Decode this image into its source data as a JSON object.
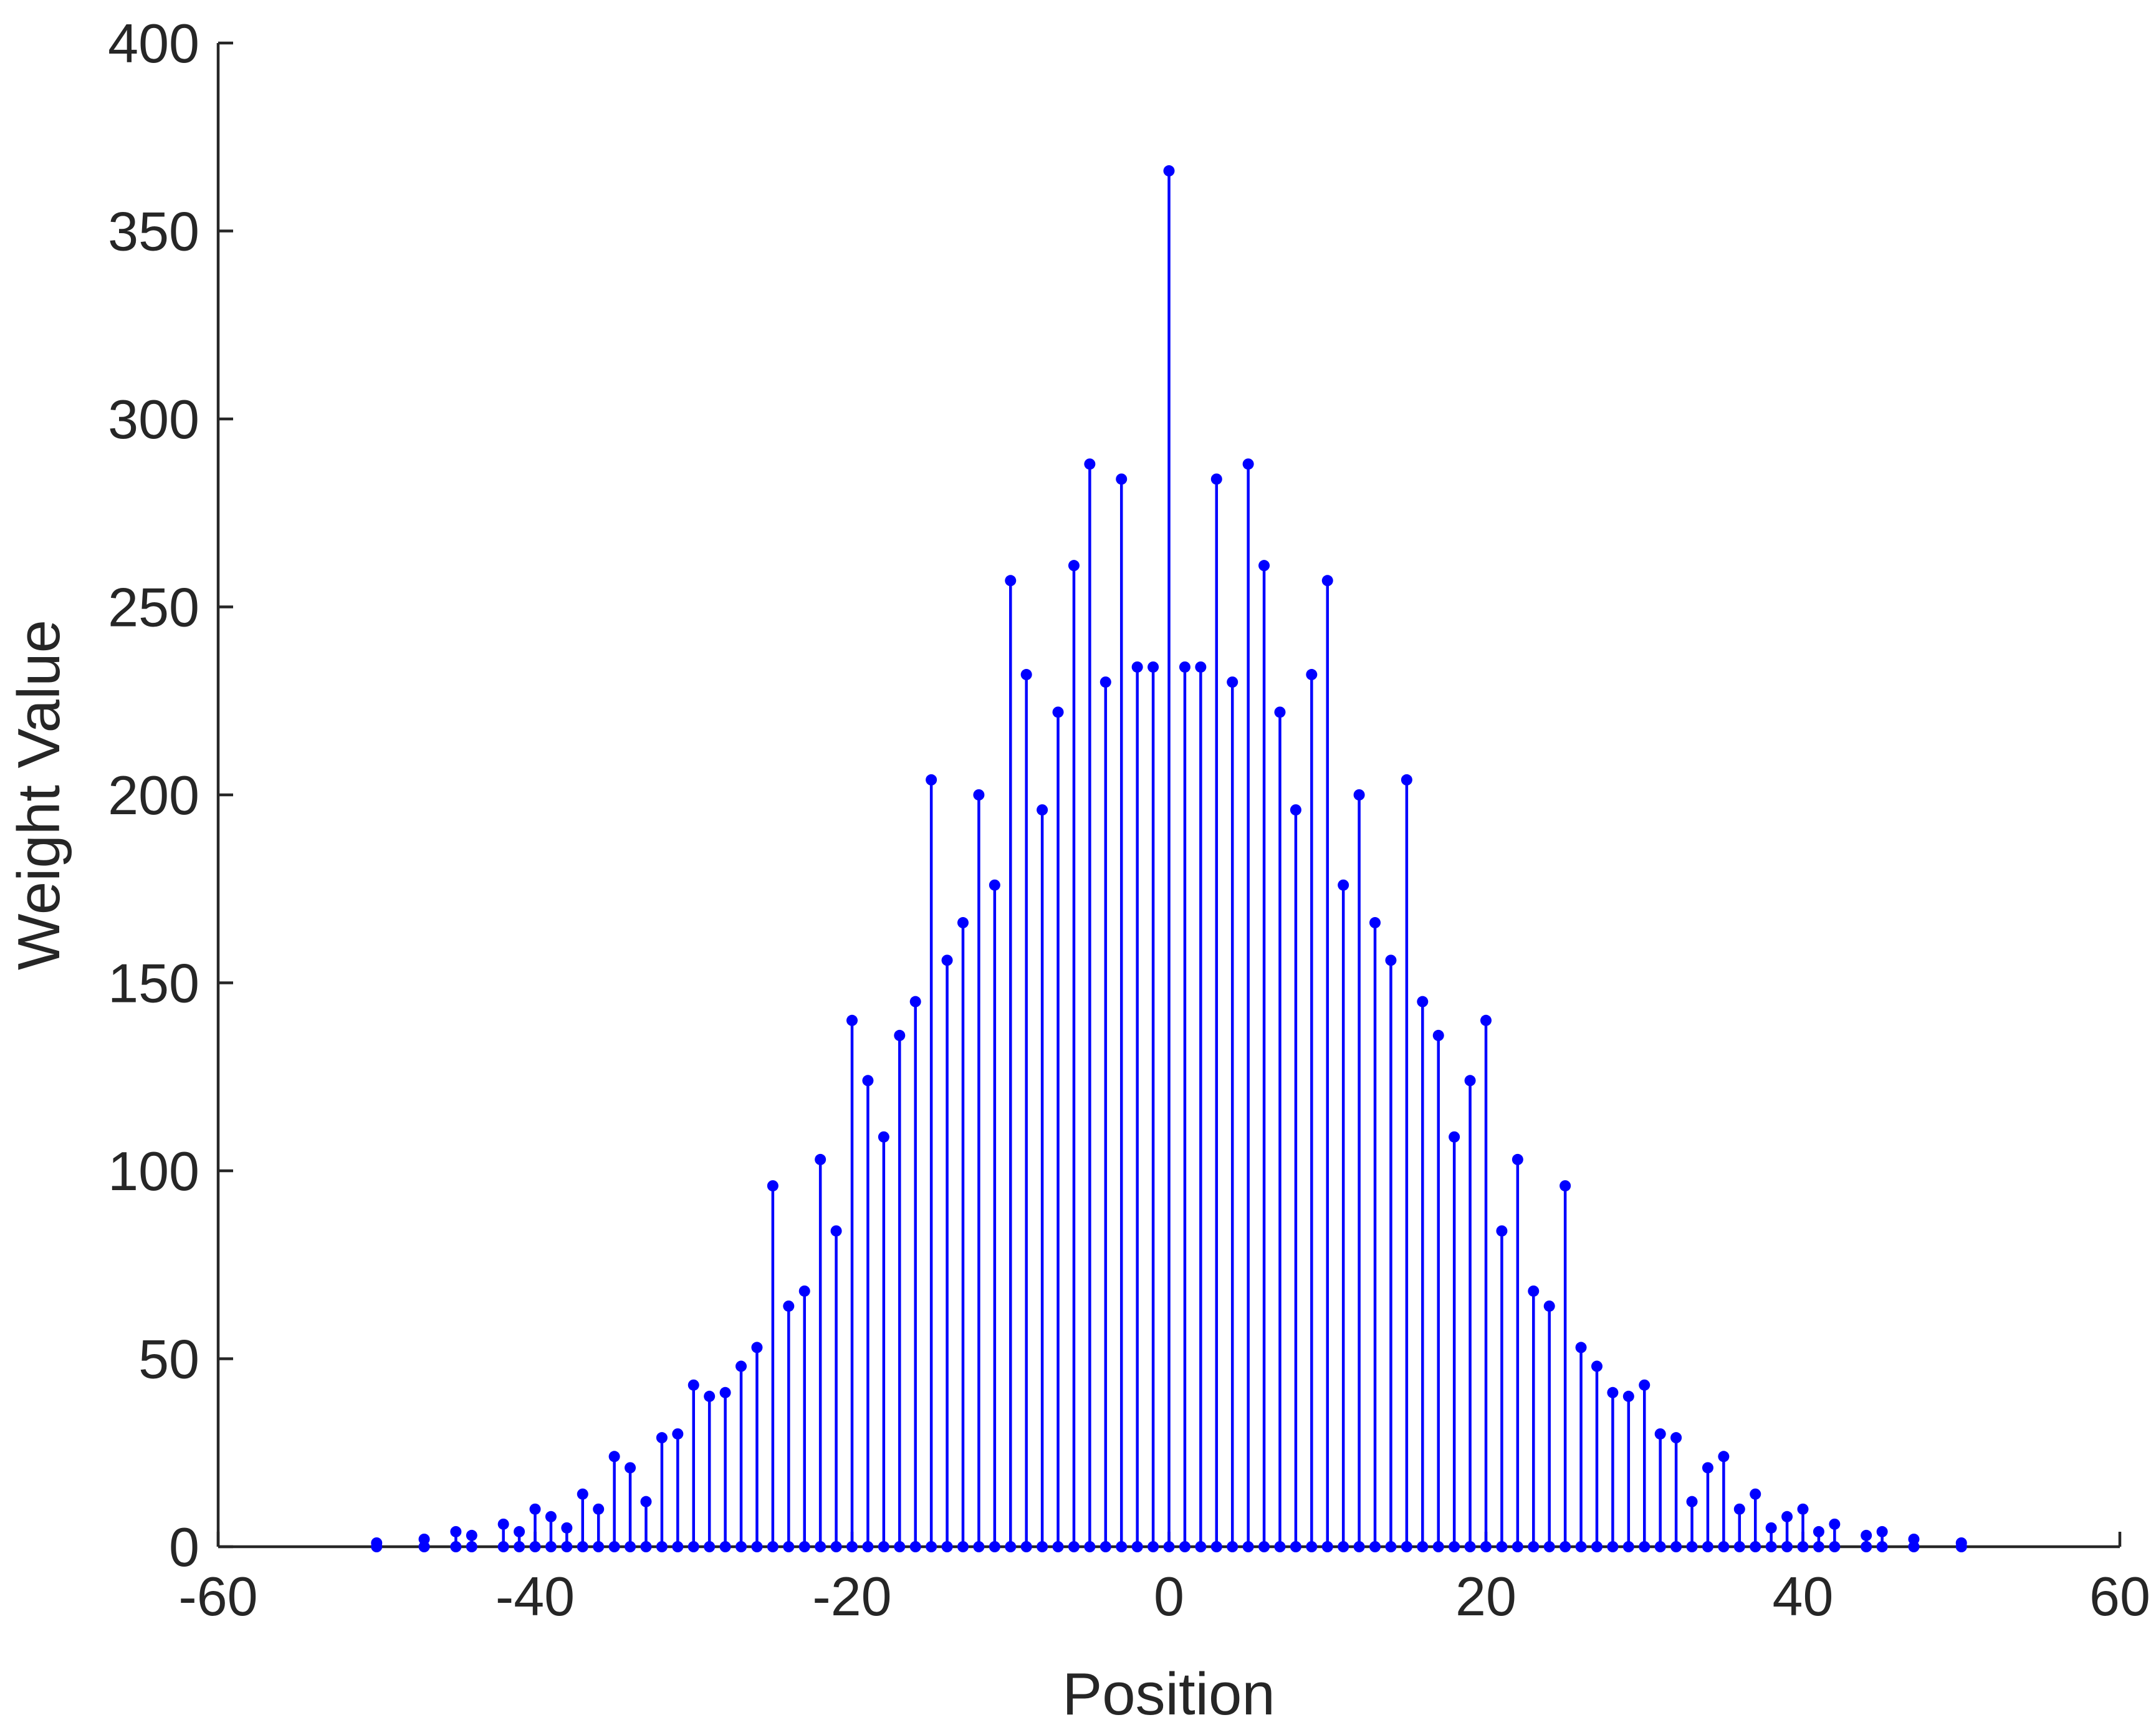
{
  "chart_data": {
    "type": "stem",
    "xlabel": "Position",
    "ylabel": "Weight Value",
    "color": "#0000ff",
    "x": [
      -50,
      -47,
      -45,
      -44,
      -42,
      -41,
      -40,
      -39,
      -38,
      -37,
      -36,
      -35,
      -34,
      -33,
      -32,
      -31,
      -30,
      -29,
      -28,
      -27,
      -26,
      -25,
      -24,
      -23,
      -22,
      -21,
      -20,
      -19,
      -18,
      -17,
      -16,
      -15,
      -14,
      -13,
      -12,
      -11,
      -10,
      -9,
      -8,
      -7,
      -6,
      -5,
      -4,
      -3,
      -2,
      -1,
      0,
      1,
      2,
      3,
      4,
      5,
      6,
      7,
      8,
      9,
      10,
      11,
      12,
      13,
      14,
      15,
      16,
      17,
      18,
      19,
      20,
      21,
      22,
      23,
      24,
      25,
      26,
      27,
      28,
      29,
      30,
      31,
      32,
      33,
      34,
      35,
      36,
      37,
      38,
      39,
      40,
      41,
      42,
      44,
      45,
      47,
      50
    ],
    "values": [
      1,
      2,
      4,
      3,
      6,
      4,
      10,
      8,
      5,
      14,
      10,
      24,
      21,
      12,
      29,
      30,
      43,
      40,
      41,
      48,
      53,
      96,
      64,
      68,
      103,
      84,
      140,
      124,
      109,
      136,
      145,
      204,
      156,
      166,
      200,
      176,
      257,
      232,
      196,
      222,
      261,
      288,
      230,
      284,
      234,
      234,
      366,
      234,
      234,
      284,
      230,
      288,
      261,
      222,
      196,
      232,
      257,
      176,
      200,
      166,
      156,
      204,
      145,
      136,
      109,
      124,
      140,
      84,
      103,
      68,
      64,
      96,
      53,
      48,
      41,
      40,
      43,
      30,
      29,
      12,
      21,
      24,
      10,
      14,
      5,
      8,
      10,
      4,
      6,
      3,
      4,
      2,
      1
    ],
    "xlim": [
      -60,
      60
    ],
    "xticks": [
      -60,
      -40,
      -20,
      0,
      20,
      40,
      60
    ],
    "ylim": [
      0,
      400
    ],
    "yticks": [
      0,
      50,
      100,
      150,
      200,
      250,
      300,
      350,
      400
    ]
  }
}
